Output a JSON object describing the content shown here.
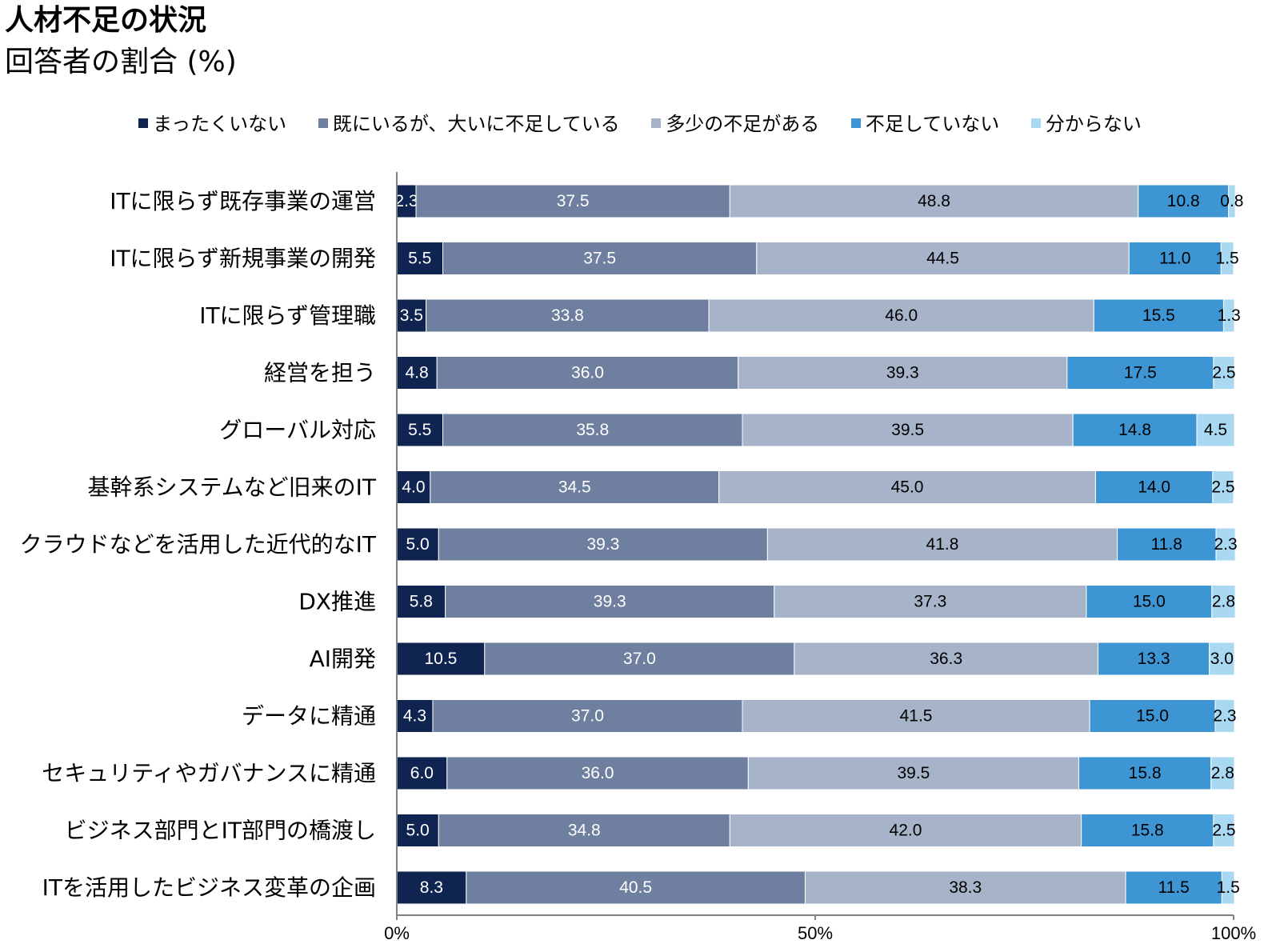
{
  "chart_data": {
    "type": "bar",
    "orientation": "horizontal",
    "stacked": true,
    "title": "人材不足の状況",
    "subtitle": "回答者の割合 (%)",
    "legend_position": "top",
    "xlim": [
      0,
      100
    ],
    "xticks": [
      "0%",
      "50%",
      "100%"
    ],
    "categories": [
      "ITに限らず既存事業の運営",
      "ITに限らず新規事業の開発",
      "ITに限らず管理職",
      "経営を担う",
      "グローバル対応",
      "基幹系システムなど旧来のIT",
      "クラウドなどを活用した近代的なIT",
      "DX推進",
      "AI開発",
      "データに精通",
      "セキュリティやガバナンスに精通",
      "ビジネス部門とIT部門の橋渡し",
      "ITを活用したビジネス変革の企画"
    ],
    "series": [
      {
        "name": "まったくいない",
        "color": "#0f2450",
        "label_color": "#ffffff",
        "values": [
          2.3,
          5.5,
          3.5,
          4.8,
          5.5,
          4.0,
          5.0,
          5.8,
          10.5,
          4.3,
          6.0,
          5.0,
          8.3
        ]
      },
      {
        "name": "既にいるが、大いに不足している",
        "color": "#6e7f9f",
        "label_color": "#ffffff",
        "values": [
          37.5,
          37.5,
          33.8,
          36.0,
          35.8,
          34.5,
          39.3,
          39.3,
          37.0,
          37.0,
          36.0,
          34.8,
          40.5
        ]
      },
      {
        "name": "多少の不足がある",
        "color": "#a6b3c9",
        "label_color": "#000000",
        "values": [
          48.8,
          44.5,
          46.0,
          39.3,
          39.5,
          45.0,
          41.8,
          37.3,
          36.3,
          41.5,
          39.5,
          42.0,
          38.3
        ]
      },
      {
        "name": "不足していない",
        "color": "#3d95d3",
        "label_color": "#000000",
        "values": [
          10.8,
          11.0,
          15.5,
          17.5,
          14.8,
          14.0,
          11.8,
          15.0,
          13.3,
          15.0,
          15.8,
          15.8,
          11.5
        ]
      },
      {
        "name": "分からない",
        "color": "#a8d8f2",
        "label_color": "#000000",
        "values": [
          0.8,
          1.5,
          1.3,
          2.5,
          4.5,
          2.5,
          2.3,
          2.8,
          3.0,
          2.3,
          2.8,
          2.5,
          1.5
        ]
      }
    ]
  }
}
